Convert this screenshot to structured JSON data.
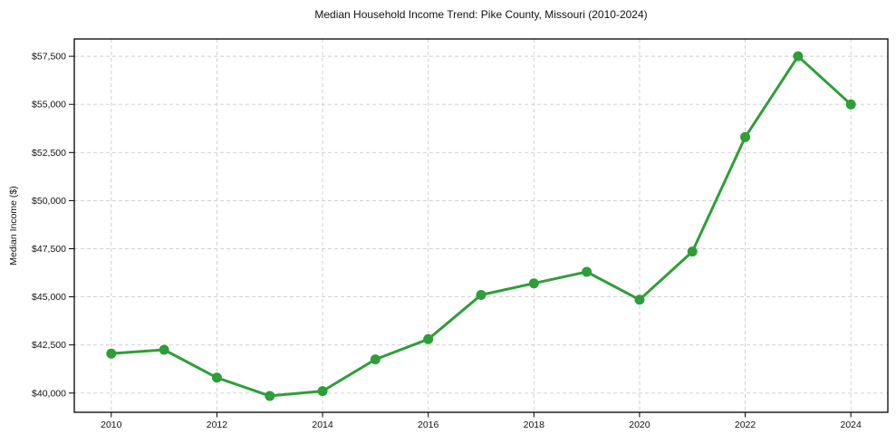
{
  "chart_data": {
    "type": "line",
    "title": "Median Household Income Trend: Pike County, Missouri (2010-2024)",
    "xlabel": "",
    "ylabel": "Median Income ($)",
    "x": [
      2010,
      2011,
      2012,
      2013,
      2014,
      2015,
      2016,
      2017,
      2018,
      2019,
      2020,
      2021,
      2022,
      2023,
      2024
    ],
    "values": [
      42050,
      42250,
      40800,
      39850,
      40100,
      41750,
      42800,
      45100,
      45700,
      46300,
      44850,
      47350,
      53300,
      57500,
      55000
    ],
    "x_ticks": [
      2010,
      2012,
      2014,
      2016,
      2018,
      2020,
      2022,
      2024
    ],
    "x_tick_labels": [
      "2010",
      "2012",
      "2014",
      "2016",
      "2018",
      "2020",
      "2022",
      "2024"
    ],
    "y_ticks": [
      40000,
      42500,
      45000,
      47500,
      50000,
      52500,
      55000,
      57500
    ],
    "y_tick_labels": [
      "$40,000",
      "$42,500",
      "$45,000",
      "$47,500",
      "$50,000",
      "$52,500",
      "$55,000",
      "$57,500"
    ],
    "xlim": [
      2009.3,
      2024.7
    ],
    "ylim": [
      39000,
      58400
    ],
    "grid": true,
    "grid_style": "dashed",
    "legend": "none",
    "marker": "circle",
    "colors": {
      "line": "#2e9e38",
      "marker": "#2e9e38",
      "grid": "#cccccc",
      "frame": "#000000",
      "text": "#111111",
      "background": "#ffffff"
    }
  }
}
